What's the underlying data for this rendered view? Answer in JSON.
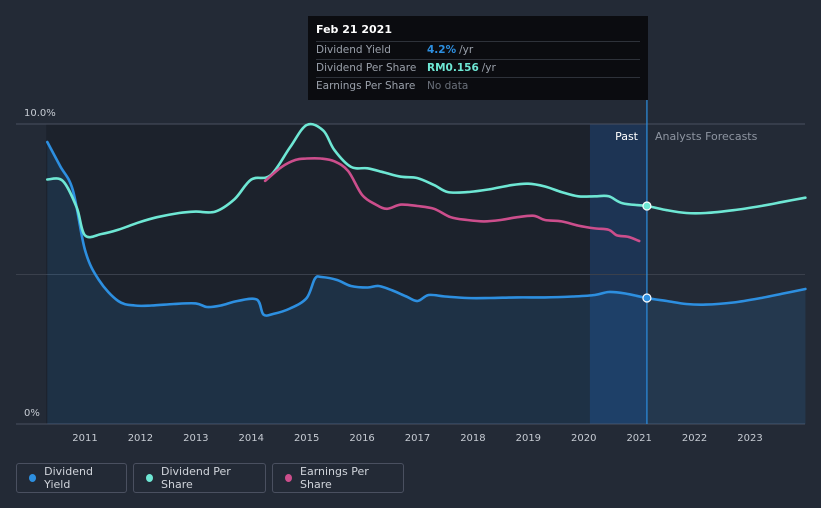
{
  "tooltip": {
    "date": "Feb 21 2021",
    "rows": [
      {
        "label": "Dividend Yield",
        "value": "4.2%",
        "unit": "/yr"
      },
      {
        "label": "Dividend Per Share",
        "value": "RM0.156",
        "unit": "/yr"
      },
      {
        "label": "Earnings Per Share",
        "value": "No data"
      }
    ]
  },
  "regions": {
    "past": "Past",
    "forecast": "Analysts Forecasts"
  },
  "legend": [
    {
      "label": "Dividend Yield",
      "color": "#2d8fe0"
    },
    {
      "label": "Dividend Per Share",
      "color": "#6ee7d4"
    },
    {
      "label": "Earnings Per Share",
      "color": "#cc4e8c"
    }
  ],
  "chart_data": {
    "type": "line",
    "title": "",
    "y_tick_labels": [
      "10.0%",
      "0%"
    ],
    "ylim": [
      0,
      10
    ],
    "x_tick_labels": [
      "2011",
      "2012",
      "2013",
      "2014",
      "2015",
      "2016",
      "2017",
      "2018",
      "2019",
      "2020",
      "2021",
      "2022",
      "2023"
    ],
    "xlim": [
      2010.3,
      2024.0
    ],
    "past_end": 2021.14,
    "series": [
      {
        "name": "Dividend Yield",
        "axis": "percent",
        "unit": "%",
        "color": "#2d8fe0",
        "filled": true,
        "x": [
          2010.32,
          2010.55,
          2010.78,
          2011.0,
          2011.25,
          2011.6,
          2011.9,
          2012.2,
          2012.6,
          2013.0,
          2013.2,
          2013.45,
          2013.75,
          2014.1,
          2014.22,
          2014.4,
          2014.7,
          2015.0,
          2015.15,
          2015.27,
          2015.55,
          2015.8,
          2016.1,
          2016.3,
          2016.55,
          2016.8,
          2017.0,
          2017.2,
          2017.5,
          2017.9,
          2018.3,
          2018.8,
          2019.3,
          2019.8,
          2020.2,
          2020.45,
          2020.75,
          2021.14,
          2021.5,
          2021.85,
          2022.2,
          2022.7,
          2023.2,
          2023.6,
          2024.0
        ],
        "y": [
          9.4,
          8.6,
          7.8,
          5.8,
          4.8,
          4.1,
          3.95,
          3.95,
          4.0,
          4.02,
          3.9,
          3.95,
          4.1,
          4.15,
          3.65,
          3.67,
          3.85,
          4.2,
          4.85,
          4.9,
          4.8,
          4.6,
          4.55,
          4.6,
          4.45,
          4.25,
          4.1,
          4.3,
          4.25,
          4.2,
          4.2,
          4.22,
          4.22,
          4.25,
          4.3,
          4.4,
          4.35,
          4.2,
          4.1,
          4.0,
          3.98,
          4.05,
          4.2,
          4.35,
          4.5
        ]
      },
      {
        "name": "Dividend Per Share",
        "axis": "money",
        "color": "#6ee7d4",
        "x": [
          2010.32,
          2010.6,
          2010.85,
          2011.0,
          2011.3,
          2011.6,
          2011.95,
          2012.3,
          2012.7,
          2013.0,
          2013.35,
          2013.7,
          2014.0,
          2014.35,
          2014.7,
          2015.0,
          2015.3,
          2015.5,
          2015.8,
          2016.1,
          2016.4,
          2016.7,
          2017.0,
          2017.3,
          2017.55,
          2017.9,
          2018.3,
          2018.7,
          2019.0,
          2019.3,
          2019.6,
          2019.9,
          2020.2,
          2020.45,
          2020.7,
          2021.14,
          2021.5,
          2021.85,
          2022.2,
          2022.7,
          2023.2,
          2023.6,
          2024.0
        ],
        "y": [
          0.175,
          0.174,
          0.155,
          0.135,
          0.136,
          0.139,
          0.144,
          0.148,
          0.151,
          0.152,
          0.152,
          0.161,
          0.175,
          0.178,
          0.198,
          0.214,
          0.21,
          0.196,
          0.184,
          0.183,
          0.18,
          0.177,
          0.176,
          0.171,
          0.166,
          0.166,
          0.168,
          0.171,
          0.172,
          0.17,
          0.166,
          0.163,
          0.163,
          0.163,
          0.158,
          0.156,
          0.153,
          0.151,
          0.151,
          0.153,
          0.156,
          0.159,
          0.162
        ]
      },
      {
        "name": "Earnings Per Share",
        "axis": "money",
        "color": "#cc4e8c",
        "x": [
          2014.25,
          2014.55,
          2014.8,
          2015.0,
          2015.25,
          2015.5,
          2015.75,
          2016.0,
          2016.25,
          2016.45,
          2016.7,
          2017.0,
          2017.3,
          2017.6,
          2017.9,
          2018.2,
          2018.5,
          2018.8,
          2019.1,
          2019.3,
          2019.6,
          2019.9,
          2020.2,
          2020.45,
          2020.6,
          2020.8,
          2021.0
        ],
        "y": [
          0.174,
          0.184,
          0.189,
          0.19,
          0.19,
          0.188,
          0.181,
          0.164,
          0.157,
          0.154,
          0.157,
          0.156,
          0.154,
          0.148,
          0.146,
          0.145,
          0.146,
          0.148,
          0.149,
          0.146,
          0.145,
          0.142,
          0.14,
          0.139,
          0.135,
          0.134,
          0.131
        ]
      }
    ]
  }
}
